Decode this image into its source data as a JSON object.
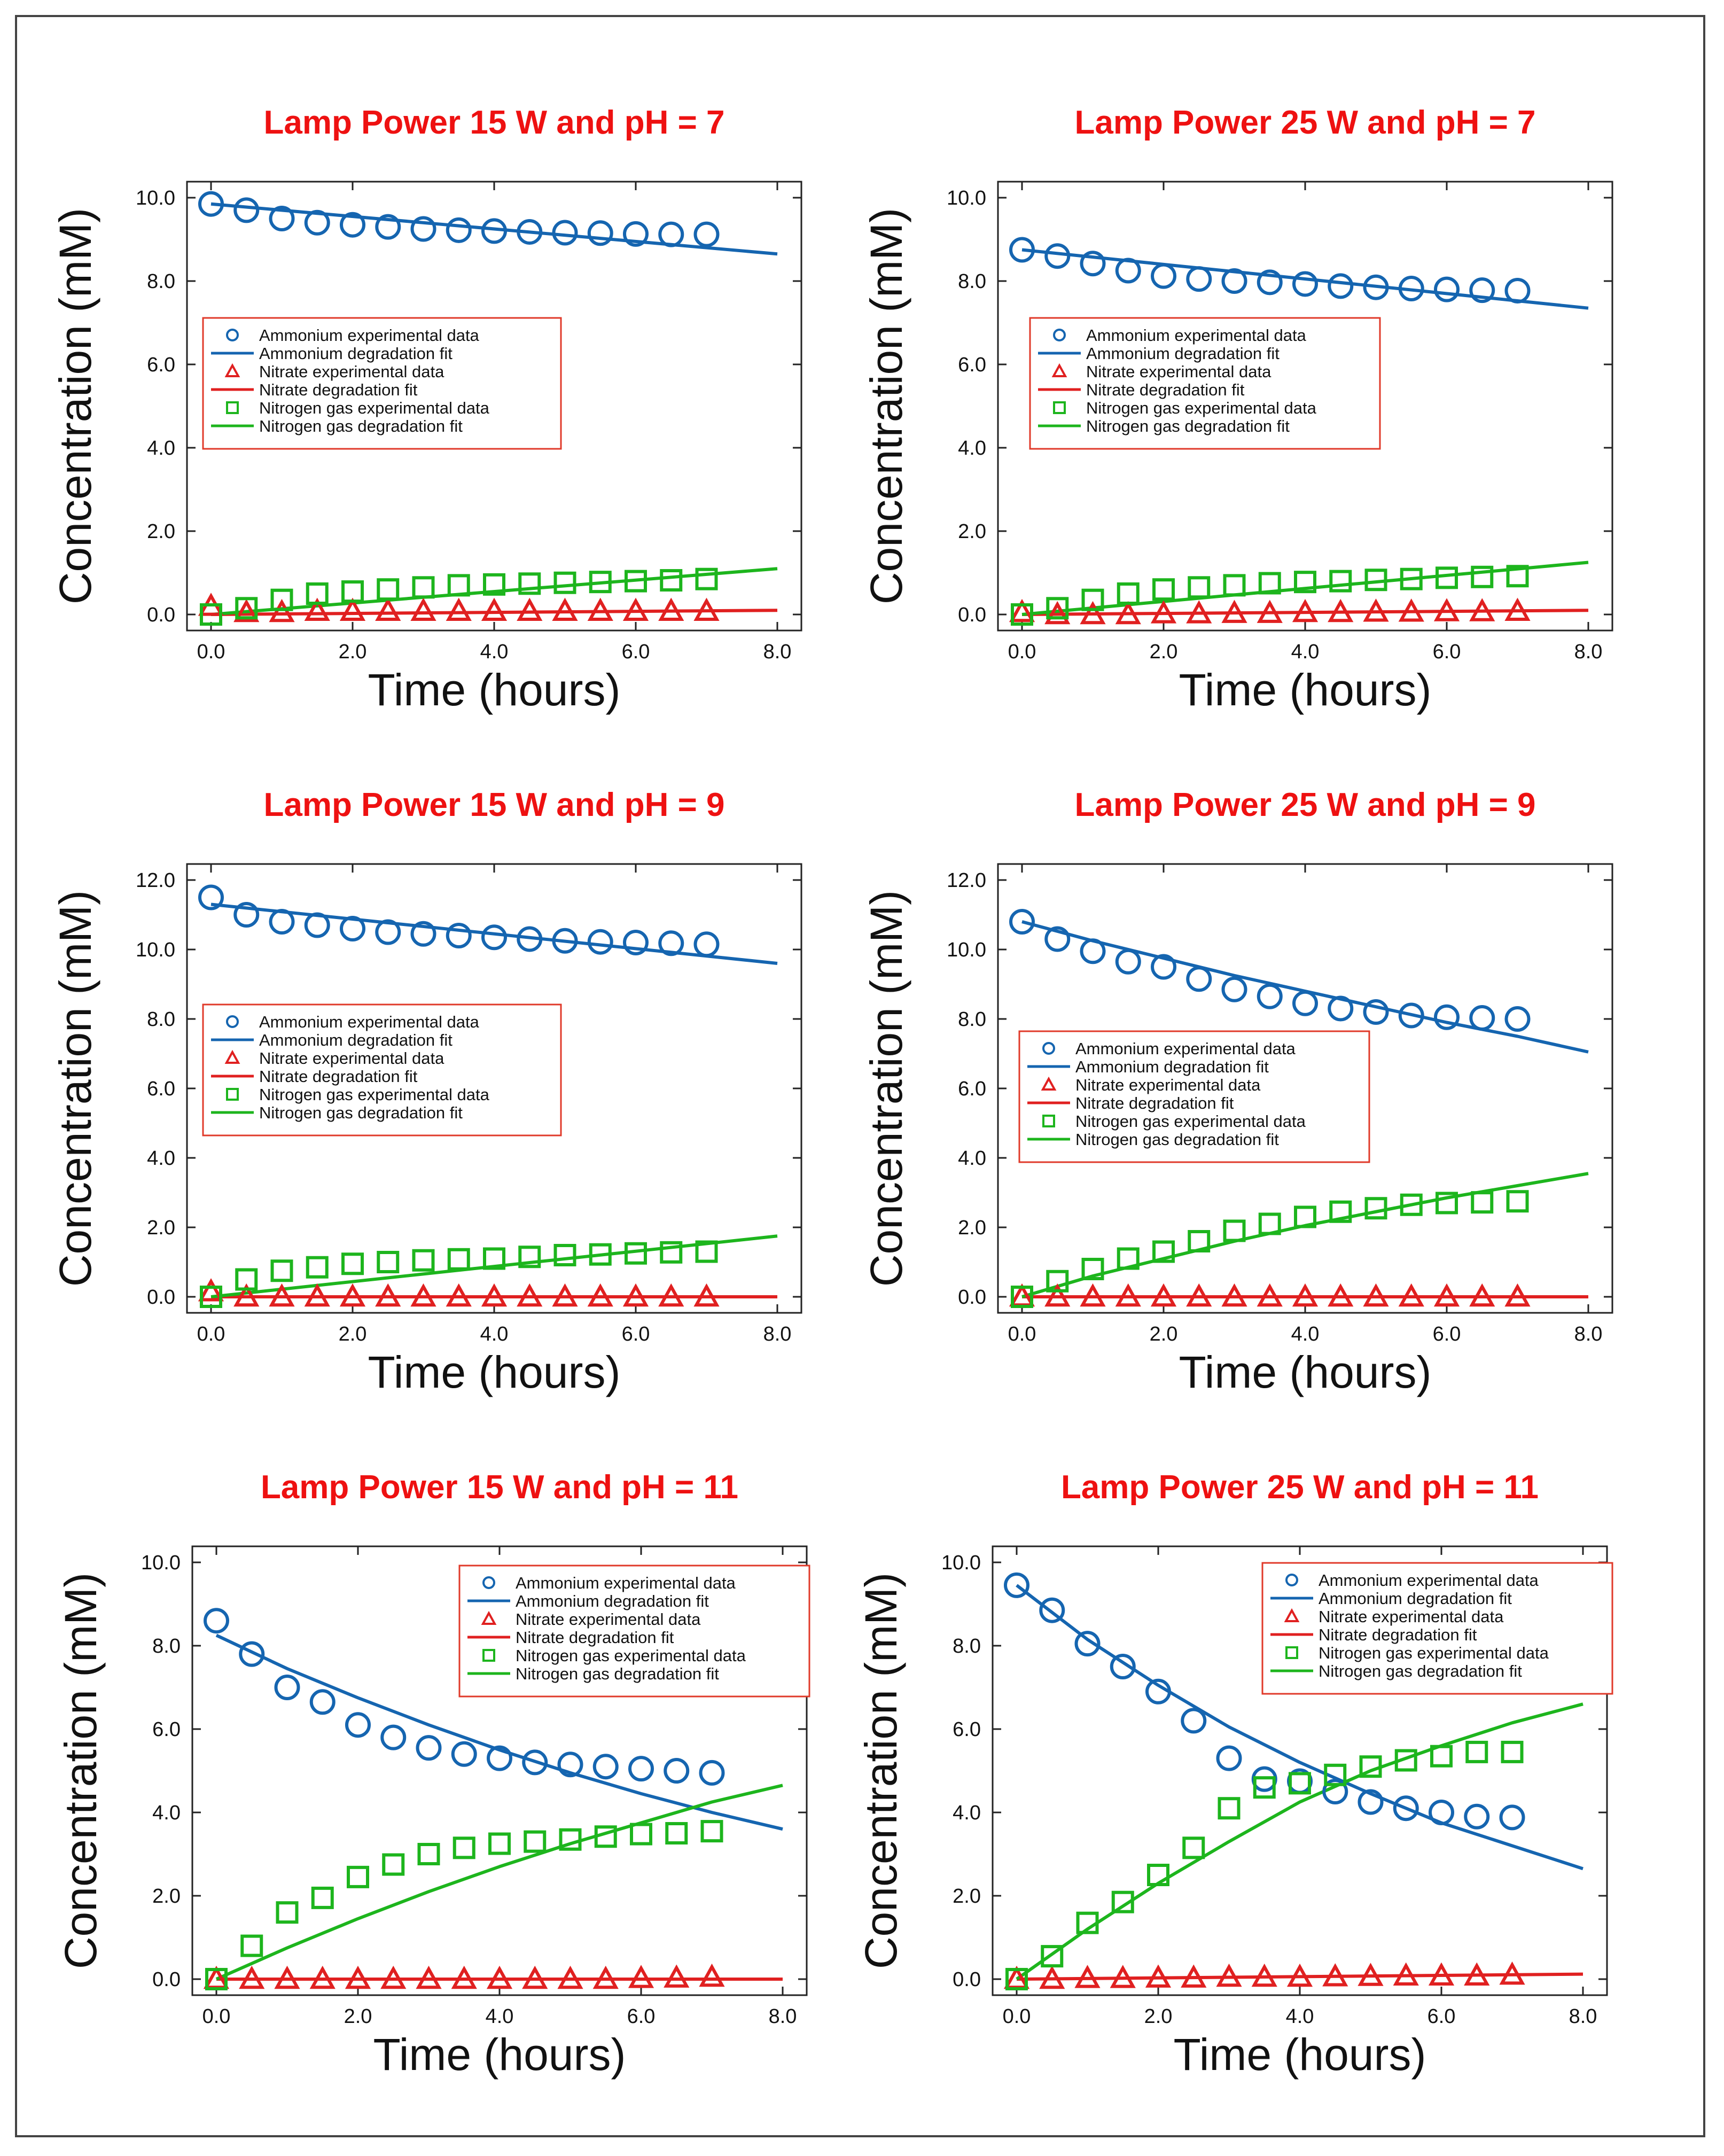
{
  "colors": {
    "ammonium": "#1565b0",
    "nitrate": "#e02020",
    "nitrogen": "#1db51d",
    "title": "#ee1111",
    "axis": "#222222",
    "legend_border": "#e03a2a"
  },
  "legend_labels": [
    "Ammonium experimental data",
    "Ammonium degradation fit",
    "Nitrate experimental data",
    "Nitrate degradation fit",
    "Nitrogen gas experimental data",
    "Nitrogen gas degradation fit"
  ],
  "chart_data": [
    {
      "type": "scatter+line",
      "title": "Lamp Power 15 W and pH = 7",
      "xlabel": "Time (hours)",
      "ylabel": "Concentration (mM)",
      "xlim": [
        0,
        8
      ],
      "ylim": [
        0,
        10
      ],
      "xticks": [
        "0.0",
        "2.0",
        "4.0",
        "6.0",
        "8.0"
      ],
      "yticks": [
        "0.0",
        "2.0",
        "4.0",
        "6.0",
        "8.0",
        "10.0"
      ],
      "legend_position": "center-left",
      "x": [
        0,
        0.5,
        1,
        1.5,
        2,
        2.5,
        3,
        3.5,
        4,
        4.5,
        5,
        5.5,
        6,
        6.5,
        7
      ],
      "series": [
        {
          "name": "Ammonium experimental data",
          "kind": "points",
          "marker": "circle",
          "values": [
            9.85,
            9.7,
            9.5,
            9.4,
            9.35,
            9.3,
            9.25,
            9.22,
            9.2,
            9.18,
            9.16,
            9.15,
            9.13,
            9.12,
            9.12
          ]
        },
        {
          "name": "Ammonium degradation fit",
          "kind": "line",
          "x": [
            0,
            8
          ],
          "values": [
            9.85,
            8.65
          ]
        },
        {
          "name": "Nitrate experimental data",
          "kind": "points",
          "marker": "triangle",
          "values": [
            0.2,
            0.05,
            0.05,
            0.08,
            0.08,
            0.08,
            0.08,
            0.08,
            0.08,
            0.08,
            0.08,
            0.08,
            0.08,
            0.08,
            0.08
          ]
        },
        {
          "name": "Nitrate degradation fit",
          "kind": "line",
          "x": [
            0,
            8
          ],
          "values": [
            0.0,
            0.1
          ]
        },
        {
          "name": "Nitrogen gas experimental data",
          "kind": "points",
          "marker": "square",
          "values": [
            0.0,
            0.15,
            0.35,
            0.5,
            0.55,
            0.6,
            0.65,
            0.7,
            0.72,
            0.74,
            0.76,
            0.78,
            0.8,
            0.82,
            0.85
          ]
        },
        {
          "name": "Nitrogen gas degradation fit",
          "kind": "line",
          "x": [
            0,
            8
          ],
          "values": [
            0.0,
            1.1
          ]
        }
      ]
    },
    {
      "type": "scatter+line",
      "title": "Lamp Power 25 W and pH = 7",
      "xlabel": "Time (hours)",
      "ylabel": "Concentration (mM)",
      "xlim": [
        0,
        8
      ],
      "ylim": [
        0,
        10
      ],
      "xticks": [
        "0.0",
        "2.0",
        "4.0",
        "6.0",
        "8.0"
      ],
      "yticks": [
        "0.0",
        "2.0",
        "4.0",
        "6.0",
        "8.0",
        "10.0"
      ],
      "legend_position": "center-left",
      "x": [
        0,
        0.5,
        1,
        1.5,
        2,
        2.5,
        3,
        3.5,
        4,
        4.5,
        5,
        5.5,
        6,
        6.5,
        7
      ],
      "series": [
        {
          "name": "Ammonium experimental data",
          "kind": "points",
          "marker": "circle",
          "values": [
            8.75,
            8.6,
            8.42,
            8.25,
            8.12,
            8.05,
            8.0,
            7.97,
            7.93,
            7.88,
            7.85,
            7.82,
            7.8,
            7.78,
            7.77
          ]
        },
        {
          "name": "Ammonium degradation fit",
          "kind": "line",
          "x": [
            0,
            8
          ],
          "values": [
            8.75,
            7.35
          ]
        },
        {
          "name": "Nitrate experimental data",
          "kind": "points",
          "marker": "triangle",
          "values": [
            0.05,
            0.0,
            0.0,
            0.0,
            0.02,
            0.02,
            0.03,
            0.03,
            0.05,
            0.05,
            0.06,
            0.06,
            0.07,
            0.07,
            0.08
          ]
        },
        {
          "name": "Nitrate degradation fit",
          "kind": "line",
          "x": [
            0,
            8
          ],
          "values": [
            0.0,
            0.1
          ]
        },
        {
          "name": "Nitrogen gas experimental data",
          "kind": "points",
          "marker": "square",
          "values": [
            0.0,
            0.15,
            0.35,
            0.5,
            0.6,
            0.65,
            0.7,
            0.75,
            0.78,
            0.8,
            0.83,
            0.85,
            0.88,
            0.9,
            0.92
          ]
        },
        {
          "name": "Nitrogen gas degradation fit",
          "kind": "line",
          "x": [
            0,
            8
          ],
          "values": [
            0.0,
            1.25
          ]
        }
      ]
    },
    {
      "type": "scatter+line",
      "title": "Lamp Power 15 W and pH = 9",
      "xlabel": "Time (hours)",
      "ylabel": "Concentration (mM)",
      "xlim": [
        0,
        8
      ],
      "ylim": [
        0,
        12
      ],
      "xticks": [
        "0.0",
        "2.0",
        "4.0",
        "6.0",
        "8.0"
      ],
      "yticks": [
        "0.0",
        "2.0",
        "4.0",
        "6.0",
        "8.0",
        "10.0",
        "12.0"
      ],
      "legend_position": "center-left",
      "x": [
        0,
        0.5,
        1,
        1.5,
        2,
        2.5,
        3,
        3.5,
        4,
        4.5,
        5,
        5.5,
        6,
        6.5,
        7
      ],
      "series": [
        {
          "name": "Ammonium experimental data",
          "kind": "points",
          "marker": "circle",
          "values": [
            11.5,
            11.0,
            10.8,
            10.7,
            10.6,
            10.5,
            10.45,
            10.4,
            10.35,
            10.3,
            10.25,
            10.22,
            10.2,
            10.18,
            10.15
          ]
        },
        {
          "name": "Ammonium degradation fit",
          "kind": "line",
          "x": [
            0,
            8
          ],
          "values": [
            11.3,
            9.6
          ]
        },
        {
          "name": "Nitrate experimental data",
          "kind": "points",
          "marker": "triangle",
          "values": [
            0.15,
            0.0,
            0.0,
            0.0,
            0.0,
            0.0,
            0.0,
            0.0,
            0.0,
            0.0,
            0.0,
            0.0,
            0.0,
            0.0,
            0.0
          ]
        },
        {
          "name": "Nitrate degradation fit",
          "kind": "line",
          "x": [
            0,
            8
          ],
          "values": [
            0.0,
            0.0
          ]
        },
        {
          "name": "Nitrogen gas experimental data",
          "kind": "points",
          "marker": "square",
          "values": [
            0.0,
            0.5,
            0.75,
            0.85,
            0.95,
            1.0,
            1.05,
            1.08,
            1.1,
            1.15,
            1.2,
            1.22,
            1.25,
            1.28,
            1.3
          ]
        },
        {
          "name": "Nitrogen gas degradation fit",
          "kind": "line",
          "x": [
            0,
            8
          ],
          "values": [
            0.0,
            1.75
          ]
        }
      ]
    },
    {
      "type": "scatter+line",
      "title": "Lamp Power 25 W and pH = 9",
      "xlabel": "Time (hours)",
      "ylabel": "Concentration (mM)",
      "xlim": [
        0,
        8
      ],
      "ylim": [
        0,
        12
      ],
      "xticks": [
        "0.0",
        "2.0",
        "4.0",
        "6.0",
        "8.0"
      ],
      "yticks": [
        "0.0",
        "2.0",
        "4.0",
        "6.0",
        "8.0",
        "10.0",
        "12.0"
      ],
      "legend_position": "center-left",
      "x": [
        0,
        0.5,
        1,
        1.5,
        2,
        2.5,
        3,
        3.5,
        4,
        4.5,
        5,
        5.5,
        6,
        6.5,
        7
      ],
      "series": [
        {
          "name": "Ammonium experimental data",
          "kind": "points",
          "marker": "circle",
          "values": [
            10.8,
            10.3,
            9.95,
            9.65,
            9.5,
            9.15,
            8.85,
            8.65,
            8.45,
            8.3,
            8.2,
            8.1,
            8.05,
            8.03,
            8.0
          ]
        },
        {
          "name": "Ammonium degradation fit",
          "kind": "curve",
          "x": [
            0,
            1,
            2,
            3,
            4,
            5,
            6,
            7,
            8
          ],
          "values": [
            10.8,
            10.25,
            9.75,
            9.25,
            8.8,
            8.35,
            7.9,
            7.5,
            7.05
          ]
        },
        {
          "name": "Nitrate experimental data",
          "kind": "points",
          "marker": "triangle",
          "values": [
            0.0,
            0.0,
            0.0,
            0.0,
            0.0,
            0.0,
            0.0,
            0.0,
            0.0,
            0.0,
            0.0,
            0.0,
            0.0,
            0.0,
            0.0
          ]
        },
        {
          "name": "Nitrate degradation fit",
          "kind": "line",
          "x": [
            0,
            8
          ],
          "values": [
            0.0,
            0.0
          ]
        },
        {
          "name": "Nitrogen gas experimental data",
          "kind": "points",
          "marker": "square",
          "values": [
            0.0,
            0.45,
            0.8,
            1.1,
            1.3,
            1.6,
            1.9,
            2.1,
            2.3,
            2.45,
            2.55,
            2.65,
            2.7,
            2.72,
            2.75
          ]
        },
        {
          "name": "Nitrogen gas degradation fit",
          "kind": "curve",
          "x": [
            0,
            1,
            2,
            3,
            4,
            5,
            6,
            7,
            8
          ],
          "values": [
            0.0,
            0.6,
            1.1,
            1.6,
            2.05,
            2.45,
            2.85,
            3.2,
            3.55
          ]
        }
      ]
    },
    {
      "type": "scatter+line",
      "title": "Lamp Power 15 W and pH = 11",
      "xlabel": "Time (hours)",
      "ylabel": "Concentration (mM)",
      "xlim": [
        0,
        8
      ],
      "ylim": [
        0,
        10
      ],
      "xticks": [
        "0.0",
        "2.0",
        "4.0",
        "6.0",
        "8.0"
      ],
      "yticks": [
        "0.0",
        "2.0",
        "4.0",
        "6.0",
        "8.0",
        "10.0"
      ],
      "legend_position": "top-right",
      "x": [
        0,
        0.5,
        1,
        1.5,
        2,
        2.5,
        3,
        3.5,
        4,
        4.5,
        5,
        5.5,
        6,
        6.5,
        7
      ],
      "series": [
        {
          "name": "Ammonium experimental data",
          "kind": "points",
          "marker": "circle",
          "values": [
            8.6,
            7.8,
            7.0,
            6.65,
            6.1,
            5.8,
            5.55,
            5.4,
            5.3,
            5.2,
            5.15,
            5.1,
            5.05,
            5.0,
            4.95
          ]
        },
        {
          "name": "Ammonium degradation fit",
          "kind": "curve",
          "x": [
            0,
            1,
            2,
            3,
            4,
            5,
            6,
            7,
            8
          ],
          "values": [
            8.25,
            7.45,
            6.75,
            6.1,
            5.5,
            4.95,
            4.45,
            4.0,
            3.6
          ]
        },
        {
          "name": "Nitrate experimental data",
          "kind": "points",
          "marker": "triangle",
          "values": [
            0.0,
            0.0,
            0.0,
            0.0,
            0.0,
            0.0,
            0.0,
            0.0,
            0.0,
            0.0,
            0.0,
            0.0,
            0.02,
            0.03,
            0.05
          ]
        },
        {
          "name": "Nitrate degradation fit",
          "kind": "line",
          "x": [
            0,
            8
          ],
          "values": [
            0.0,
            0.0
          ]
        },
        {
          "name": "Nitrogen gas experimental data",
          "kind": "points",
          "marker": "square",
          "values": [
            0.0,
            0.8,
            1.6,
            1.95,
            2.45,
            2.75,
            3.0,
            3.15,
            3.25,
            3.3,
            3.35,
            3.42,
            3.48,
            3.5,
            3.55
          ]
        },
        {
          "name": "Nitrogen gas degradation fit",
          "kind": "curve",
          "x": [
            0,
            1,
            2,
            3,
            4,
            5,
            6,
            7,
            8
          ],
          "values": [
            0.0,
            0.75,
            1.45,
            2.1,
            2.7,
            3.25,
            3.75,
            4.25,
            4.65
          ]
        }
      ]
    },
    {
      "type": "scatter+line",
      "title": "Lamp Power 25 W and pH = 11",
      "xlabel": "Time (hours)",
      "ylabel": "Concentration (mM)",
      "xlim": [
        0,
        8
      ],
      "ylim": [
        0,
        10
      ],
      "xticks": [
        "0.0",
        "2.0",
        "4.0",
        "6.0",
        "8.0"
      ],
      "yticks": [
        "0.0",
        "2.0",
        "4.0",
        "6.0",
        "8.0",
        "10.0"
      ],
      "legend_position": "top-right",
      "x": [
        0,
        0.5,
        1,
        1.5,
        2,
        2.5,
        3,
        3.5,
        4,
        4.5,
        5,
        5.5,
        6,
        6.5,
        7
      ],
      "series": [
        {
          "name": "Ammonium experimental data",
          "kind": "points",
          "marker": "circle",
          "values": [
            9.45,
            8.85,
            8.05,
            7.5,
            6.9,
            6.2,
            5.3,
            4.8,
            4.75,
            4.5,
            4.25,
            4.1,
            4.0,
            3.9,
            3.88
          ]
        },
        {
          "name": "Ammonium degradation fit",
          "kind": "curve",
          "x": [
            0,
            1,
            2,
            3,
            4,
            5,
            6,
            7,
            8
          ],
          "values": [
            9.45,
            8.15,
            7.05,
            6.05,
            5.2,
            4.45,
            3.75,
            3.2,
            2.65
          ]
        },
        {
          "name": "Nitrate experimental data",
          "kind": "points",
          "marker": "triangle",
          "values": [
            0.0,
            0.0,
            0.02,
            0.02,
            0.03,
            0.03,
            0.05,
            0.05,
            0.05,
            0.06,
            0.07,
            0.08,
            0.08,
            0.08,
            0.1
          ]
        },
        {
          "name": "Nitrate degradation fit",
          "kind": "line",
          "x": [
            0,
            8
          ],
          "values": [
            0.0,
            0.12
          ]
        },
        {
          "name": "Nitrogen gas experimental data",
          "kind": "points",
          "marker": "square",
          "values": [
            0.0,
            0.55,
            1.35,
            1.85,
            2.5,
            3.15,
            4.1,
            4.6,
            4.7,
            4.9,
            5.1,
            5.25,
            5.35,
            5.45,
            5.45
          ]
        },
        {
          "name": "Nitrogen gas degradation fit",
          "kind": "curve",
          "x": [
            0,
            1,
            2,
            3,
            4,
            5,
            6,
            7,
            8
          ],
          "values": [
            0.0,
            1.2,
            2.3,
            3.3,
            4.25,
            5.0,
            5.6,
            6.15,
            6.6
          ]
        }
      ]
    }
  ]
}
